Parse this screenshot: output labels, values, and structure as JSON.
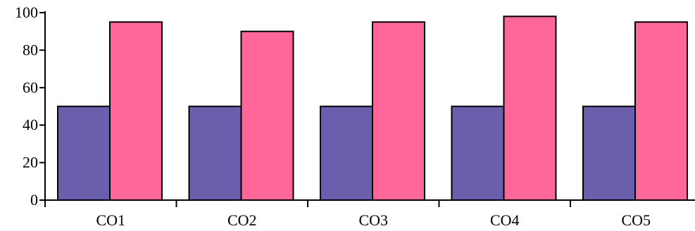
{
  "chart_data": {
    "type": "bar",
    "categories": [
      "CO1",
      "CO2",
      "CO3",
      "CO4",
      "CO5"
    ],
    "series": [
      {
        "values": [
          50,
          50,
          50,
          50,
          50
        ],
        "color": "#6a5fac"
      },
      {
        "values": [
          95,
          90,
          95,
          98,
          95
        ],
        "color": "#ff6699"
      }
    ],
    "ylim": [
      0,
      100
    ],
    "yticks": [
      0,
      20,
      40,
      60,
      80,
      100
    ],
    "grid": false,
    "legend": "none"
  }
}
